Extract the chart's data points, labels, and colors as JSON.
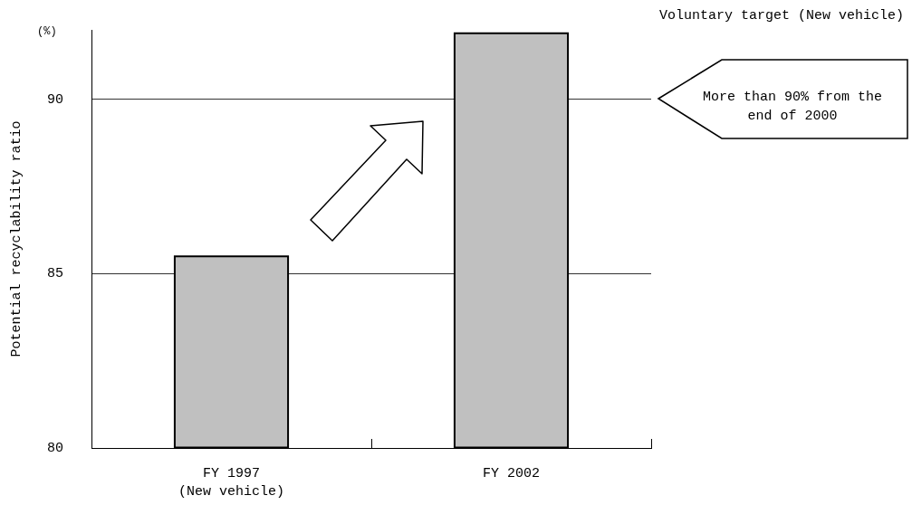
{
  "chart_data": {
    "type": "bar",
    "categories": [
      "FY 1997\n(New vehicle)",
      "FY 2002"
    ],
    "values": [
      85.5,
      91.9
    ],
    "color": "#c0c0c0",
    "ylabel": "Potential recyclability ratio",
    "ylim": [
      80,
      92
    ],
    "yticks": [
      80,
      85,
      90
    ],
    "grid": "y",
    "annotations": [
      "(%)",
      "Voluntary target (New vehicle)",
      "More than 90% from the end of 2000"
    ]
  }
}
